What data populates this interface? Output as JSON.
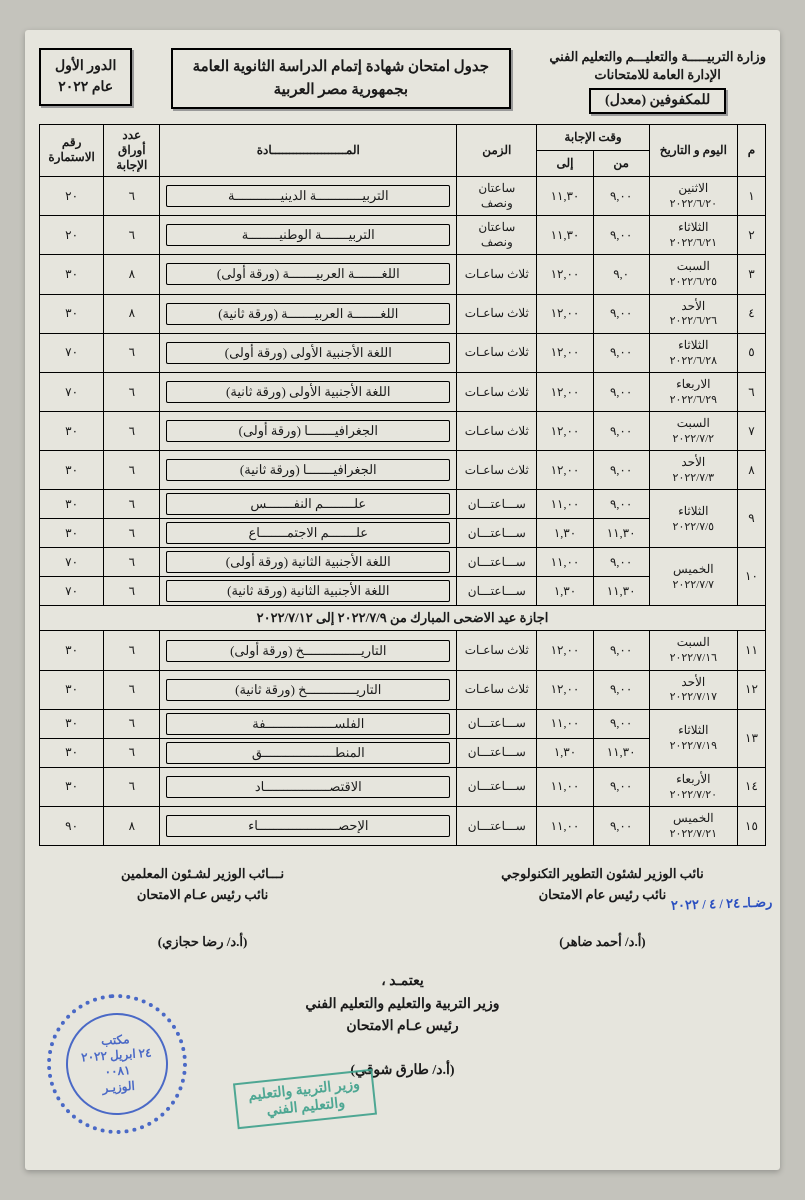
{
  "header": {
    "ministry_line1": "وزارة التربيـــــة والتعليـــم والتعليم الفني",
    "ministry_line2": "الإدارة العامة للامتحانات",
    "mod_box": "للمكفوفين (معدل)",
    "title_line1": "جدول امتحان شهادة إتمام الدراسة الثانوية العامة",
    "title_line2": "بجمهورية مصر العربية",
    "round_line1": "الدور الأول",
    "round_line2": "عام ٢٠٢٢"
  },
  "cols": {
    "m": "م",
    "day": "اليوم و التاريخ",
    "answer_time": "وقت الإجابة",
    "from": "من",
    "to": "إلى",
    "dur": "الزمن",
    "subj": "المـــــــــــــــــــــادة",
    "pages": "عدد أوراق الإجابة",
    "form": "رقم الاستمارة"
  },
  "holiday": "اجازة عيد الاضحى المبارك من ٢٠٢٢/٧/٩ إلى ٢٠٢٢/٧/١٢",
  "rows": [
    {
      "m": "١",
      "day": "الاثنين",
      "date": "٢٠٢٢/٦/٢٠",
      "from": "٩,٠٠",
      "to": "١١,٣٠",
      "dur": "ساعتان ونصف",
      "subj": "التربيــــــــــــة الدينيــــــــــــة",
      "pg": "٦",
      "form": "٢٠"
    },
    {
      "m": "٢",
      "day": "الثلاثاء",
      "date": "٢٠٢٢/٦/٢١",
      "from": "٩,٠٠",
      "to": "١١,٣٠",
      "dur": "ساعتان ونصف",
      "subj": "التربيـــــــة الوطنيــــــــة",
      "pg": "٦",
      "form": "٢٠"
    },
    {
      "m": "٣",
      "day": "السبت",
      "date": "٢٠٢٢/٦/٢٥",
      "from": "٩,٠",
      "to": "١٢,٠٠",
      "dur": "ثلاث ساعـات",
      "subj": "اللغـــــــة العربيـــــــة   (ورقة أولى)",
      "pg": "٨",
      "form": "٣٠"
    },
    {
      "m": "٤",
      "day": "الأحد",
      "date": "٢٠٢٢/٦/٢٦",
      "from": "٩,٠٠",
      "to": "١٢,٠٠",
      "dur": "ثلاث ساعـات",
      "subj": "اللغـــــــة العربيـــــــة   (ورقة ثانية)",
      "pg": "٨",
      "form": "٣٠"
    },
    {
      "m": "٥",
      "day": "الثلاثاء",
      "date": "٢٠٢٢/٦/٢٨",
      "from": "٩,٠٠",
      "to": "١٢,٠٠",
      "dur": "ثلاث ساعـات",
      "subj": "اللغة الأجنبية الأولى   (ورقة أولى)",
      "pg": "٦",
      "form": "٧٠"
    },
    {
      "m": "٦",
      "day": "الاربعاء",
      "date": "٢٠٢٢/٦/٢٩",
      "from": "٩,٠٠",
      "to": "١٢,٠٠",
      "dur": "ثلاث ساعـات",
      "subj": "اللغة الأجنبية الأولى   (ورقة ثانية)",
      "pg": "٦",
      "form": "٧٠"
    },
    {
      "m": "٧",
      "day": "السبت",
      "date": "٢٠٢٢/٧/٢",
      "from": "٩,٠٠",
      "to": "١٢,٠٠",
      "dur": "ثلاث ساعـات",
      "subj": "الجغرافيـــــــا  (ورقة أولى)",
      "pg": "٦",
      "form": "٣٠"
    },
    {
      "m": "٨",
      "day": "الأحد",
      "date": "٢٠٢٢/٧/٣",
      "from": "٩,٠٠",
      "to": "١٢,٠٠",
      "dur": "ثلاث ساعـات",
      "subj": "الجغرافيـــــــا  (ورقة ثانية)",
      "pg": "٦",
      "form": "٣٠"
    }
  ],
  "rows_g1": {
    "m": "٩",
    "day": "الثلاثاء",
    "date": "٢٠٢٢/٧/٥",
    "r1": {
      "from": "٩,٠٠",
      "to": "١١,٠٠",
      "dur": "ســـاعتـــان",
      "subj": "علــــــــم النفـــــــس",
      "pg": "٦",
      "form": "٣٠"
    },
    "r2": {
      "from": "١١,٣٠",
      "to": "١,٣٠",
      "dur": "ســـاعتـــان",
      "subj": "علـــــــم الاجتمـــــــاع",
      "pg": "٦",
      "form": "٣٠"
    }
  },
  "rows_g2": {
    "m": "١٠",
    "day": "الخميس",
    "date": "٢٠٢٢/٧/٧",
    "r1": {
      "from": "٩,٠٠",
      "to": "١١,٠٠",
      "dur": "ســـاعتـــان",
      "subj": "اللغة الأجنبية الثانية (ورقة أولى)",
      "pg": "٦",
      "form": "٧٠"
    },
    "r2": {
      "from": "١١,٣٠",
      "to": "١,٣٠",
      "dur": "ســـاعتـــان",
      "subj": "اللغة الأجنبية الثانية (ورقة ثانية)",
      "pg": "٦",
      "form": "٧٠"
    }
  },
  "rows2": [
    {
      "m": "١١",
      "day": "السبت",
      "date": "٢٠٢٢/٧/١٦",
      "from": "٩,٠٠",
      "to": "١٢,٠٠",
      "dur": "ثلاث ساعـات",
      "subj": "التاريـــــــــــــــخ (ورقة أولى)",
      "pg": "٦",
      "form": "٣٠"
    },
    {
      "m": "١٢",
      "day": "الأحد",
      "date": "٢٠٢٢/٧/١٧",
      "from": "٩,٠٠",
      "to": "١٢,٠٠",
      "dur": "ثلاث ساعـات",
      "subj": "التاريـــــــــــــخ (ورقة ثانية)",
      "pg": "٦",
      "form": "٣٠"
    }
  ],
  "rows_g3": {
    "m": "١٣",
    "day": "الثلاثاء",
    "date": "٢٠٢٢/٧/١٩",
    "r1": {
      "from": "٩,٠٠",
      "to": "١١,٠٠",
      "dur": "ســـاعتـــان",
      "subj": "الفلســــــــــــــــــفة",
      "pg": "٦",
      "form": "٣٠"
    },
    "r2": {
      "from": "١١,٣٠",
      "to": "١,٣٠",
      "dur": "ســـاعتـــان",
      "subj": "المنطـــــــــــــــــــق",
      "pg": "٦",
      "form": "٣٠"
    }
  },
  "rows3": [
    {
      "m": "١٤",
      "day": "الأربعاء",
      "date": "٢٠٢٢/٧/٢٠",
      "from": "٩,٠٠",
      "to": "١١,٠٠",
      "dur": "ســـاعتـــان",
      "subj": "الاقتصـــــــــــــــــاد",
      "pg": "٦",
      "form": "٣٠"
    },
    {
      "m": "١٥",
      "day": "الخميس",
      "date": "٢٠٢٢/٧/٢١",
      "from": "٩,٠٠",
      "to": "١١,٠٠",
      "dur": "ســـاعتـــان",
      "subj": "الإحصـــــــــــــــــــــاء",
      "pg": "٨",
      "form": "٩٠"
    }
  ],
  "sigs": {
    "right_t1": "نائب الوزير لشئون التطوير التكنولوجي",
    "right_t2": "نائب رئيس عام الامتحان",
    "right_name": "(أ.د/ أحمد ضاهر)",
    "left_t1": "نـــائب الوزير لشـئون المعلمين",
    "left_t2": "نائب رئيس عـام الامتحان",
    "left_name": "(أ.د/ رضا حجازي)",
    "left_hand": "رضـاـ ٢٤ / ٤ / ٢٠٢٢",
    "approve": "يعتمـد ،",
    "min_t1": "وزير التربية والتعليم والتعليم الفني",
    "min_t2": "رئيس عـام الامتحان",
    "min_name": "(أ.د/ طارق شوقي)"
  },
  "stamp_round": {
    "l1": "مكتب",
    "l2": "٢٤ ابريل ٢٠٢٢",
    "l3": "٠٠٨١",
    "l4": "الوزيـر"
  },
  "stamp_rect": {
    "l1": "وزير التربية والتعليم",
    "l2": "والتعليم الفني"
  }
}
